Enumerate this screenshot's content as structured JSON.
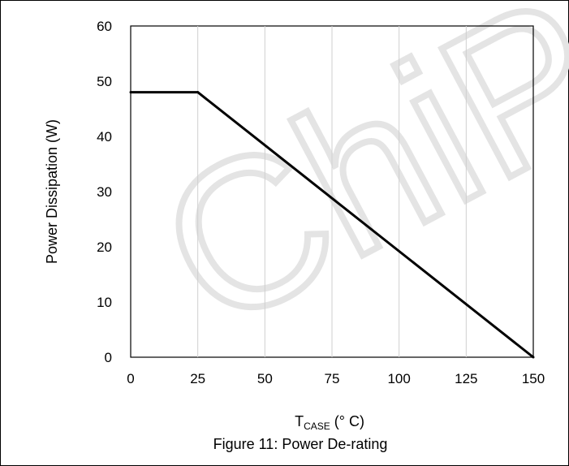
{
  "watermark": {
    "text": "ChiP"
  },
  "chart_data": {
    "type": "line",
    "series": [
      {
        "x": [
          0,
          25,
          150
        ],
        "y": [
          48,
          48,
          0
        ],
        "color": "#000000"
      }
    ],
    "xlabel_main": "T",
    "xlabel_sub": "CASE",
    "xlabel_unit": " (° C)",
    "ylabel": "Power Dissipation (W)",
    "xlim": [
      0,
      150
    ],
    "ylim": [
      0,
      60
    ],
    "xticks": [
      0,
      25,
      50,
      75,
      100,
      125,
      150
    ],
    "yticks": [
      0,
      10,
      20,
      30,
      40,
      50,
      60
    ],
    "grid": "vertical",
    "caption": "Figure 11: Power De-rating"
  }
}
